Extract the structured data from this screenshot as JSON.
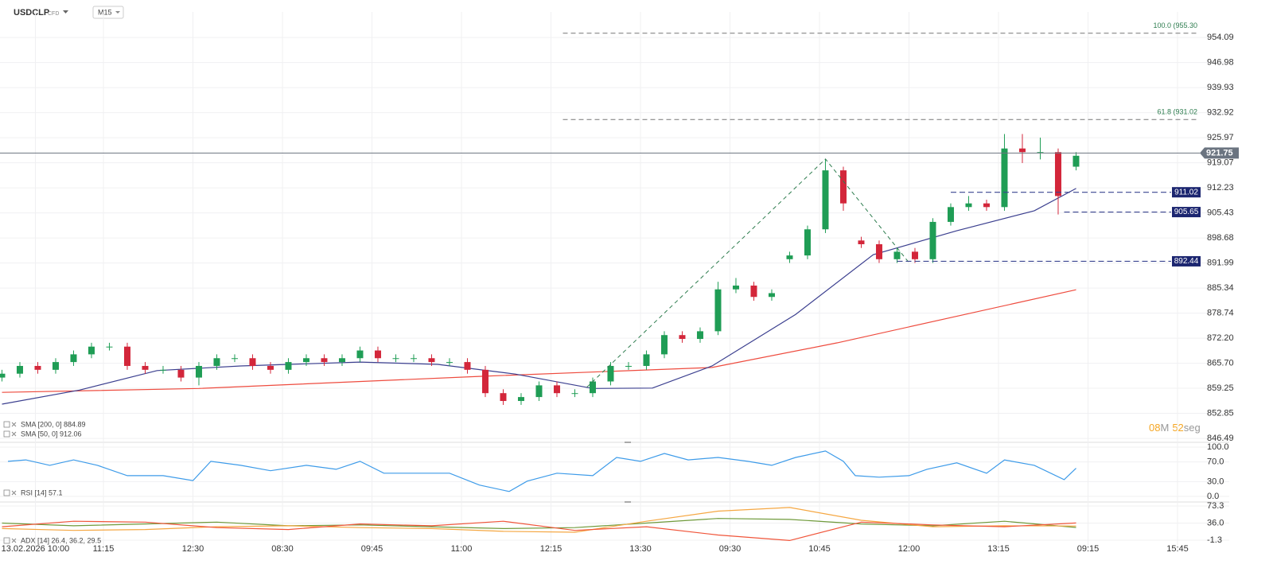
{
  "header": {
    "symbol": "USDCLP",
    "kind": "CFD",
    "timeframe": "M15"
  },
  "countdown": {
    "minutes": "08",
    "m": "M",
    "seconds": "52",
    "s": "seg"
  },
  "chart_data": [
    {
      "type": "candlestick",
      "log_scale": true,
      "grid": true,
      "xlim": [
        -0.33,
        205.67
      ],
      "xticks": [
        {
          "value": 5.6,
          "label": "13.02.2026 10:00"
        },
        {
          "value": 17,
          "label": "11:15"
        },
        {
          "value": 32,
          "label": "12:30"
        },
        {
          "value": 47,
          "label": "08:30"
        },
        {
          "value": 62,
          "label": "09:45"
        },
        {
          "value": 77,
          "label": "11:00"
        },
        {
          "value": 92,
          "label": "12:15"
        },
        {
          "value": 107,
          "label": "13:30"
        },
        {
          "value": 122,
          "label": "09:30"
        },
        {
          "value": 137,
          "label": "10:45"
        },
        {
          "value": 152,
          "label": "12:00"
        },
        {
          "value": 167,
          "label": "13:15"
        },
        {
          "value": 182,
          "label": "09:15"
        },
        {
          "value": 197,
          "label": "15:45"
        }
      ],
      "ylim": [
        845.7,
        961.4
      ],
      "yticks": [
        954.09,
        946.98,
        939.93,
        932.92,
        925.97,
        919.07,
        912.23,
        905.43,
        898.68,
        891.99,
        885.34,
        878.74,
        {
          "value": 872.2,
          "label": "872.20"
        },
        {
          "value": 865.7,
          "label": "865.70"
        },
        859.25,
        852.85,
        846.49
      ],
      "candles": {
        "up_color": "#1f9d55",
        "down_color": "#d3263a",
        "x": [
          0,
          3,
          6,
          9,
          12,
          15,
          18,
          21,
          24,
          27,
          30,
          33,
          36,
          39,
          42,
          45,
          48,
          51,
          54,
          57,
          60,
          63,
          66,
          69,
          72,
          75,
          78,
          81,
          84,
          87,
          90,
          93,
          96,
          99,
          102,
          105,
          108,
          111,
          114,
          117,
          120,
          123,
          126,
          129,
          132,
          135,
          138,
          141,
          144,
          147,
          150,
          153,
          156,
          159,
          162,
          165,
          168,
          171,
          174,
          177,
          180
        ],
        "open": [
          862,
          863,
          865,
          864,
          866,
          868,
          870,
          870,
          865,
          864,
          864,
          862,
          865,
          867,
          867,
          865,
          864,
          866,
          867,
          866,
          867,
          869,
          867,
          867,
          867,
          866,
          866,
          864,
          858,
          856,
          857,
          860,
          858,
          858,
          861,
          865,
          865,
          868,
          873,
          872,
          874,
          885,
          886,
          883,
          893,
          894,
          901,
          917,
          898,
          897,
          893,
          895,
          893,
          903,
          907,
          908,
          907,
          923,
          922,
          922,
          918
        ],
        "high": [
          864,
          866,
          866,
          867,
          869,
          871,
          871,
          871,
          866,
          865,
          865,
          866,
          868,
          868,
          868,
          866,
          867,
          868,
          868,
          868,
          870,
          870,
          868,
          868,
          868,
          867,
          867,
          865,
          859,
          858,
          861,
          861,
          859,
          862,
          866,
          866,
          869,
          874,
          874,
          875,
          887,
          888,
          887,
          885,
          895,
          902,
          920,
          918,
          899,
          898,
          896,
          896,
          904,
          908,
          910,
          909,
          927,
          927,
          926,
          923,
          922
        ],
        "low": [
          861,
          862,
          863,
          863,
          865,
          867,
          869,
          864,
          863,
          863,
          861,
          860,
          864,
          866,
          864,
          863,
          863,
          865,
          865,
          865,
          866,
          866,
          866,
          866,
          865,
          865,
          863,
          857,
          855,
          855,
          856,
          857,
          857,
          857,
          860,
          864,
          864,
          867,
          871,
          871,
          873,
          884,
          882,
          882,
          892,
          893,
          900,
          906,
          896,
          892,
          892,
          892,
          892,
          902,
          906,
          906,
          906,
          919,
          920,
          905,
          917
        ],
        "close": [
          863,
          865,
          864,
          866,
          868,
          870,
          870,
          865,
          864,
          864,
          862,
          865,
          867,
          867,
          865,
          864,
          866,
          867,
          866,
          867,
          869,
          867,
          867,
          867,
          866,
          866,
          864,
          858,
          856,
          857,
          860,
          858,
          858,
          861,
          865,
          865,
          868,
          873,
          872,
          874,
          885,
          886,
          883,
          884,
          894,
          901,
          917,
          908,
          897,
          893,
          895,
          893,
          903,
          907,
          908,
          907,
          923,
          922,
          922,
          910,
          921
        ]
      },
      "series": [
        {
          "name": "SMA [200, 0]  884.89",
          "color": "#ee4b3e",
          "x": [
            0,
            33,
            80,
            119,
            140,
            180
          ],
          "values": [
            858.2,
            859.2,
            862.3,
            864.6,
            871.0,
            884.89
          ]
        },
        {
          "name": "SMA [50, 0]  912.06",
          "color": "#3b3f8f",
          "x": [
            0,
            13,
            26,
            40,
            60,
            73,
            86,
            99,
            109,
            119,
            133,
            146,
            160,
            173,
            180
          ],
          "values": [
            855.2,
            858.8,
            863.8,
            865.0,
            866.0,
            865.4,
            862.9,
            859.2,
            859.3,
            865.0,
            878.4,
            894.2,
            900.6,
            906.0,
            912.06
          ]
        }
      ],
      "zigzag": {
        "color": "#2e7d4f",
        "x": [
          98,
          138,
          152
        ],
        "values": [
          859.5,
          920.1,
          892.1
        ]
      },
      "fib_levels": [
        {
          "label": "100.0 (955.30",
          "value": 955.3,
          "start": 94
        },
        {
          "label": "61.8 (931.02",
          "value": 931.02,
          "start": 94
        }
      ],
      "levels": [
        {
          "value": 911.02,
          "start": 159
        },
        {
          "value": 905.65,
          "start": 178
        },
        {
          "value": 892.44,
          "start": 150
        }
      ],
      "current": 921.75
    },
    {
      "type": "line",
      "grid": true,
      "ylim": [
        -9.7,
        108
      ],
      "yticks": [
        {
          "value": 100,
          "label": "100.0"
        },
        {
          "value": 70,
          "label": "70.0"
        },
        {
          "value": 30,
          "label": "30.0"
        },
        {
          "value": 0,
          "label": "0.0"
        }
      ],
      "series": [
        {
          "name": "RSI [14]  57.1",
          "color": "#3d9be9",
          "x": [
            1,
            4,
            8,
            12,
            16,
            21,
            27,
            32,
            35,
            40,
            45,
            51,
            56,
            60,
            64,
            69,
            75,
            80,
            85,
            88,
            93,
            99,
            103,
            107,
            111,
            115,
            120,
            125,
            129,
            133,
            138,
            141,
            143,
            147,
            152,
            155,
            160,
            165,
            168,
            173,
            178,
            180
          ],
          "values": [
            71,
            74,
            63,
            74,
            63,
            42,
            42,
            32,
            71,
            63,
            52,
            63,
            55,
            71,
            47,
            47,
            47,
            23,
            10,
            31,
            47,
            42,
            79,
            71,
            87,
            74,
            79,
            71,
            63,
            79,
            92,
            71,
            42,
            39,
            42,
            55,
            68,
            47,
            74,
            63,
            34,
            57.1
          ]
        }
      ]
    },
    {
      "type": "line",
      "grid": true,
      "ylim": [
        -20.4,
        80.2
      ],
      "yticks": [
        73.3,
        {
          "value": 36,
          "label": "36.0"
        },
        -1.3
      ],
      "legend": "ADX [14]  26.4, 36.2, 29.5",
      "series": [
        {
          "color": "#6f9a3b",
          "x": [
            0,
            12,
            24,
            36,
            48,
            60,
            72,
            84,
            96,
            108,
            120,
            132,
            144,
            156,
            168,
            180
          ],
          "values": [
            36,
            30,
            34,
            38,
            30,
            32,
            28,
            24,
            26,
            36,
            46,
            44,
            34,
            30,
            40,
            26.4
          ]
        },
        {
          "color": "#f5a742",
          "x": [
            0,
            12,
            24,
            36,
            48,
            60,
            72,
            84,
            96,
            108,
            120,
            132,
            144,
            156,
            168,
            180
          ],
          "values": [
            24,
            20,
            22,
            28,
            30,
            26,
            24,
            18,
            16,
            40,
            62,
            70,
            42,
            28,
            30,
            29.5
          ]
        },
        {
          "color": "#f0553a",
          "x": [
            0,
            12,
            24,
            36,
            48,
            60,
            72,
            84,
            96,
            108,
            120,
            132,
            144,
            156,
            168,
            180
          ],
          "values": [
            28,
            40,
            38,
            26,
            22,
            34,
            30,
            40,
            20,
            28,
            10,
            -2,
            38,
            32,
            28,
            36.2
          ]
        }
      ]
    }
  ]
}
